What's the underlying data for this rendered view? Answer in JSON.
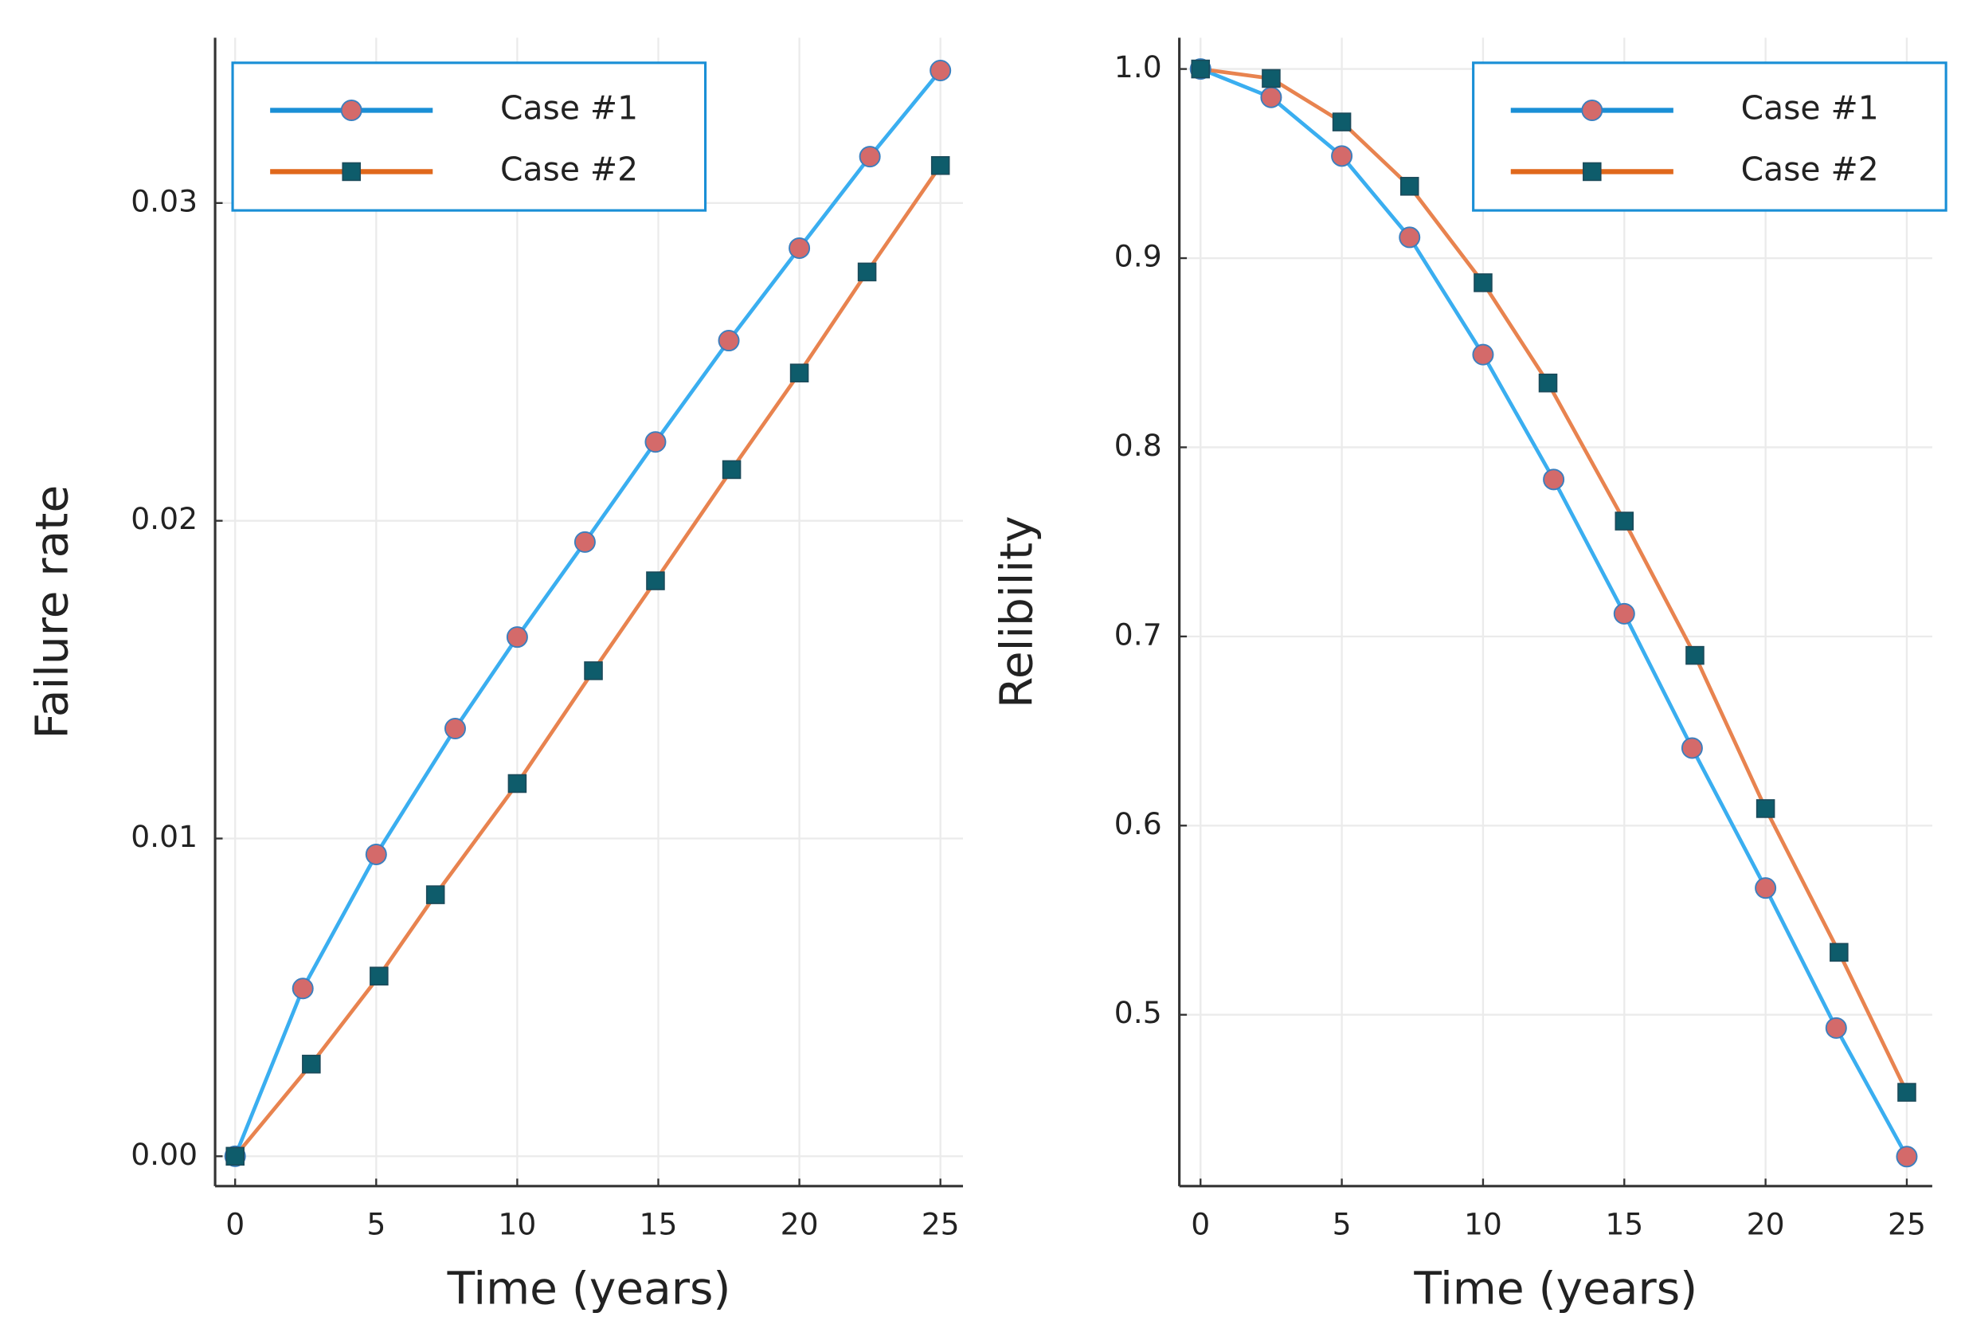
{
  "chart_data": [
    {
      "type": "line",
      "xlabel": "Time (years)",
      "ylabel": "Failure rate",
      "xlim": [
        -0.71,
        25.8
      ],
      "ylim": [
        -0.00094,
        0.0352
      ],
      "xticks": [
        0,
        5,
        10,
        15,
        20,
        25
      ],
      "yticks": [
        {
          "value": 0,
          "label": "0.00"
        },
        0.01,
        0.02,
        0.03
      ],
      "grid": true,
      "legend": "top left",
      "series": [
        {
          "name": "Case #1",
          "color": "#3aaef0",
          "marker": "circle",
          "marker_color": "#d46a6a",
          "x": [
            0,
            2.4,
            5,
            7.8,
            10,
            12.4,
            14.9,
            17.5,
            20,
            22.5,
            25
          ],
          "values": [
            0,
            0.00528,
            0.0095,
            0.01346,
            0.01634,
            0.01933,
            0.02248,
            0.02567,
            0.02858,
            0.03146,
            0.03417
          ]
        },
        {
          "name": "Case #2",
          "color": "#e8834f",
          "marker": "square",
          "marker_color": "#0e5c6b",
          "x": [
            0,
            2.7,
            5.1,
            7.1,
            10,
            12.7,
            14.9,
            17.6,
            20,
            22.4,
            25
          ],
          "values": [
            0,
            0.0029,
            0.00567,
            0.00823,
            0.01173,
            0.01528,
            0.01811,
            0.02161,
            0.02465,
            0.02783,
            0.03118
          ]
        }
      ]
    },
    {
      "type": "line",
      "xlabel": "Time (years)",
      "ylabel": "Relibility",
      "xlim": [
        -0.75,
        25.9
      ],
      "ylim": [
        0.4094,
        1.0165
      ],
      "xticks": [
        0,
        5,
        10,
        15,
        20,
        25
      ],
      "yticks": [
        0.5,
        0.6,
        0.7,
        0.8,
        0.9,
        {
          "value": 1,
          "label": "1.0"
        }
      ],
      "grid": true,
      "legend": "top right",
      "series": [
        {
          "name": "Case #1",
          "color": "#3aaef0",
          "marker": "circle",
          "marker_color": "#d46a6a",
          "x": [
            0,
            2.5,
            5,
            7.4,
            10,
            12.5,
            15,
            17.4,
            20,
            22.5,
            25
          ],
          "values": [
            1.0,
            0.985,
            0.954,
            0.911,
            0.849,
            0.783,
            0.712,
            0.641,
            0.567,
            0.493,
            0.425
          ]
        },
        {
          "name": "Case #2",
          "color": "#e8834f",
          "marker": "square",
          "marker_color": "#0e5c6b",
          "x": [
            0,
            2.5,
            5,
            7.4,
            10,
            12.3,
            15,
            17.5,
            20,
            22.6,
            25
          ],
          "values": [
            1.0,
            0.995,
            0.972,
            0.938,
            0.887,
            0.834,
            0.761,
            0.69,
            0.609,
            0.533,
            0.459
          ]
        }
      ]
    }
  ]
}
